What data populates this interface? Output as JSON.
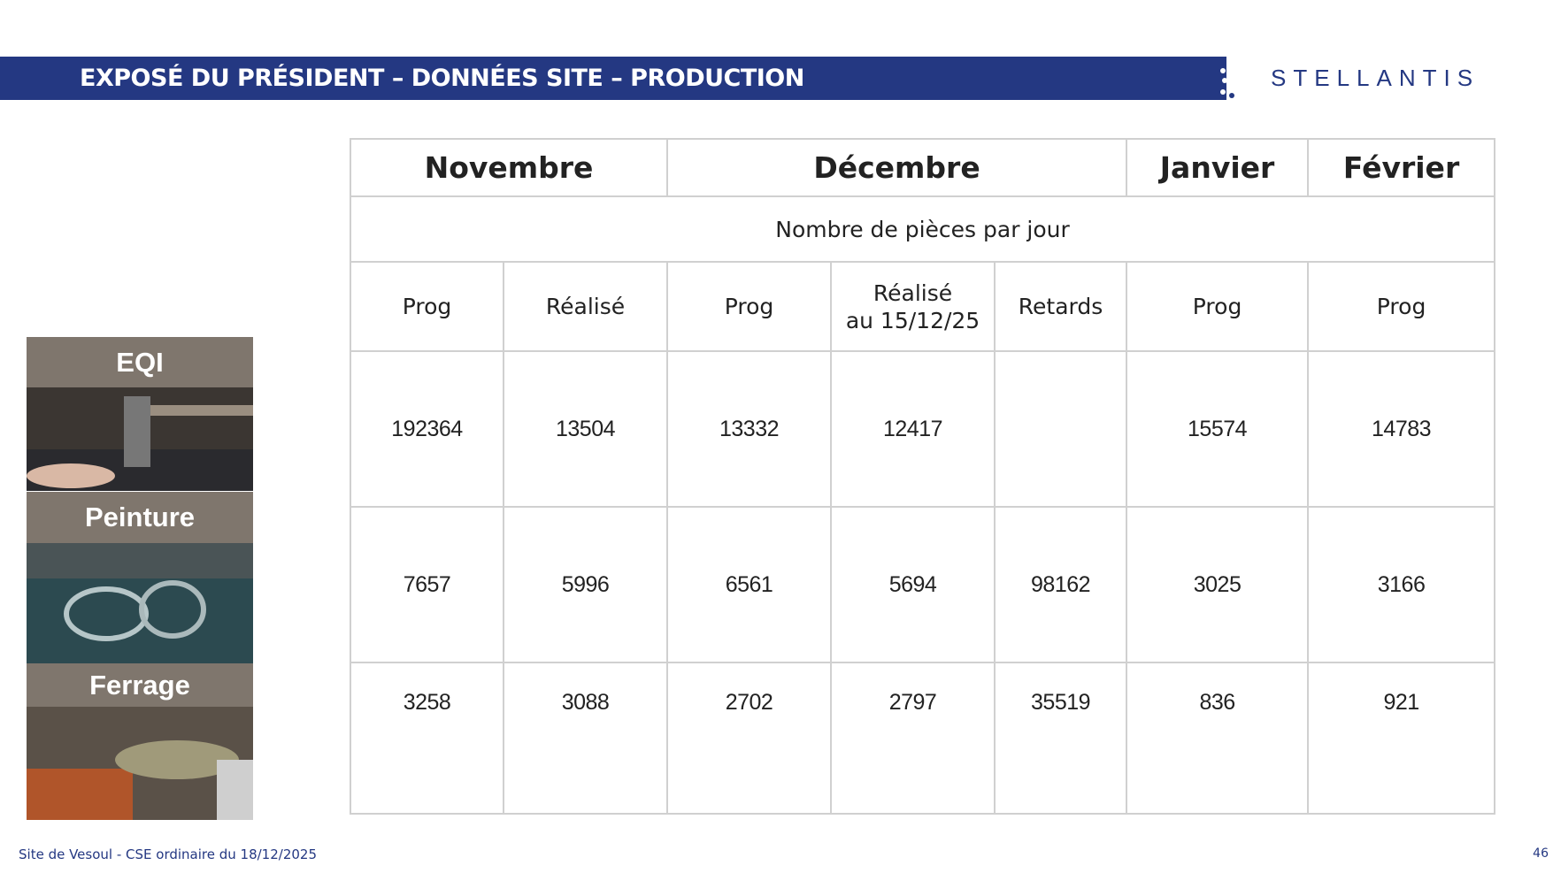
{
  "header": {
    "title": "EXPOSÉ DU PRÉSIDENT – DONNÉES SITE – PRODUCTION",
    "logo": "STELLANTIS"
  },
  "sections": [
    "EQI",
    "Peinture",
    "Ferrage"
  ],
  "table": {
    "months": [
      "Novembre",
      "Décembre",
      "Janvier",
      "Février"
    ],
    "subheader": "Nombre de pièces par jour",
    "columns": [
      "Prog",
      "Réalisé",
      "Prog",
      [
        "Réalisé",
        "au 15/12/25"
      ],
      "Retards",
      "Prog",
      "Prog"
    ],
    "rows": [
      [
        192364,
        13504,
        13332,
        12417,
        null,
        15574,
        14783
      ],
      [
        7657,
        5996,
        6561,
        5694,
        98162,
        3025,
        3166
      ],
      [
        3258,
        3088,
        2702,
        2797,
        35519,
        836,
        921
      ]
    ]
  },
  "footer": {
    "text": "Site de Vesoul - CSE ordinaire du 18/12/2025",
    "page": "46"
  }
}
